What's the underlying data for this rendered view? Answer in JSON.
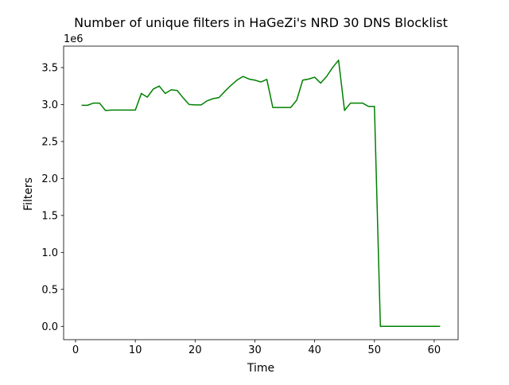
{
  "chart_data": {
    "type": "line",
    "title": "Number of unique filters in HaGeZi's NRD 30 DNS Blocklist",
    "xlabel": "Time",
    "ylabel": "Filters",
    "y_offset_label": "1e6",
    "xlim": [
      -2,
      64
    ],
    "ylim": [
      -180000,
      3790000
    ],
    "x_ticks": [
      0,
      10,
      20,
      30,
      40,
      50,
      60
    ],
    "y_ticks": [
      0,
      0.5,
      1.0,
      1.5,
      2.0,
      2.5,
      3.0,
      3.5
    ],
    "y_tick_labels": [
      "0.0",
      "0.5",
      "1.0",
      "1.5",
      "2.0",
      "2.5",
      "3.0",
      "3.5"
    ],
    "grid": false,
    "series": [
      {
        "color": "#008000",
        "x": [
          1,
          2,
          3,
          4,
          5,
          6,
          7,
          8,
          9,
          10,
          11,
          12,
          13,
          14,
          15,
          16,
          17,
          18,
          19,
          20,
          21,
          22,
          23,
          24,
          25,
          26,
          27,
          28,
          29,
          30,
          31,
          32,
          33,
          34,
          35,
          36,
          37,
          38,
          39,
          40,
          41,
          42,
          43,
          44,
          45,
          46,
          47,
          48,
          49,
          50,
          51,
          52,
          53,
          54,
          55,
          56,
          57,
          58,
          59,
          60,
          61
        ],
        "y": [
          2990000,
          2990000,
          3020000,
          3020000,
          2920000,
          2925000,
          2925000,
          2925000,
          2925000,
          2925000,
          3150000,
          3100000,
          3210000,
          3250000,
          3150000,
          3200000,
          3190000,
          3090000,
          3000000,
          2995000,
          2995000,
          3050000,
          3080000,
          3095000,
          3180000,
          3260000,
          3330000,
          3380000,
          3345000,
          3330000,
          3305000,
          3340000,
          2960000,
          2960000,
          2960000,
          2960000,
          3060000,
          3330000,
          3345000,
          3370000,
          3290000,
          3380000,
          3500000,
          3600000,
          2920000,
          3020000,
          3020000,
          3020000,
          2975000,
          2975000,
          0,
          0,
          0,
          0,
          0,
          0,
          0,
          0,
          0,
          0,
          0
        ]
      }
    ]
  }
}
